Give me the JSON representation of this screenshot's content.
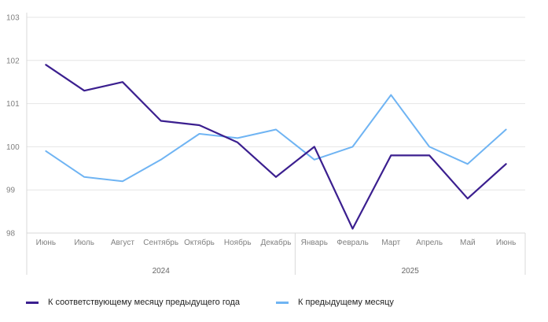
{
  "chart_data": {
    "type": "line",
    "categories": [
      "Июнь",
      "Июль",
      "Август",
      "Сентябрь",
      "Октябрь",
      "Ноябрь",
      "Декабрь",
      "Январь",
      "Февраль",
      "Март",
      "Апрель",
      "Май",
      "Июнь"
    ],
    "groups": [
      {
        "label": "2024",
        "count": 7
      },
      {
        "label": "2025",
        "count": 6
      }
    ],
    "series": [
      {
        "name": "К соответствующему месяцу предыдущего года",
        "color": "#3b1f8f",
        "values": [
          101.9,
          101.3,
          101.5,
          100.6,
          100.5,
          100.1,
          99.3,
          100.0,
          98.1,
          99.8,
          99.8,
          98.8,
          99.6
        ]
      },
      {
        "name": "К предыдущему месяцу",
        "color": "#6fb4f3",
        "values": [
          99.9,
          99.3,
          99.2,
          99.7,
          100.3,
          100.2,
          100.4,
          99.7,
          100.0,
          101.2,
          100.0,
          99.6,
          100.4
        ]
      }
    ],
    "yticks": [
      98,
      99,
      100,
      101,
      102,
      103
    ],
    "ylim": [
      98,
      103
    ],
    "grid": true,
    "legend": "bottom"
  }
}
